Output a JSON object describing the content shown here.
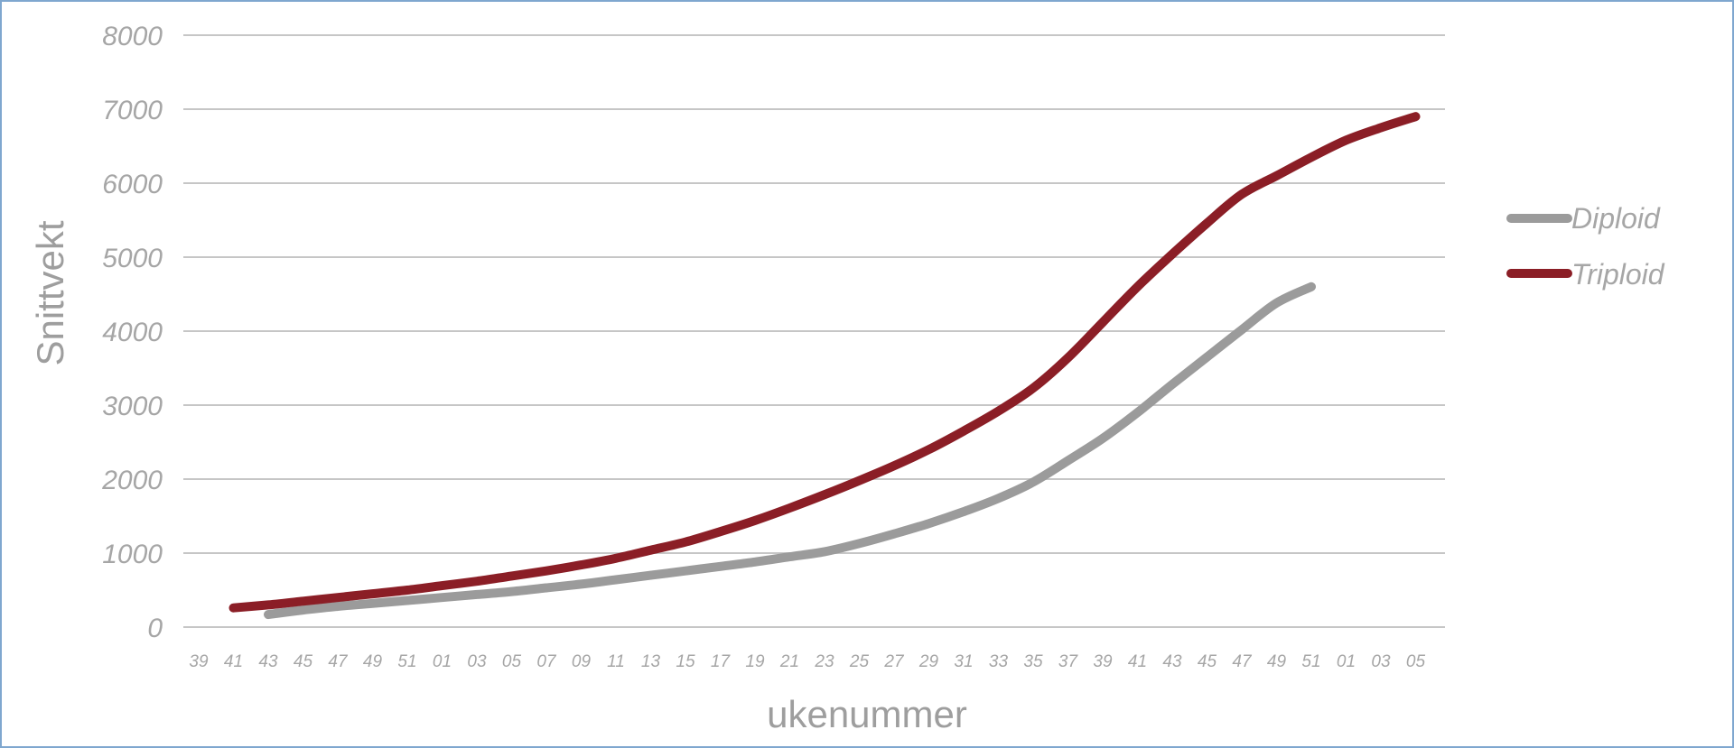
{
  "chart_data": {
    "type": "line",
    "title": "",
    "xlabel": "ukenummer",
    "ylabel": "Snittvekt",
    "ylim": [
      0,
      8000
    ],
    "yticks": [
      "0",
      "1000",
      "2000",
      "3000",
      "4000",
      "5000",
      "6000",
      "7000",
      "8000"
    ],
    "categories": [
      "39",
      "41",
      "43",
      "45",
      "47",
      "49",
      "51",
      "01",
      "03",
      "05",
      "07",
      "09",
      "11",
      "13",
      "15",
      "17",
      "19",
      "21",
      "23",
      "25",
      "27",
      "29",
      "31",
      "33",
      "35",
      "37",
      "39",
      "41",
      "43",
      "45",
      "47",
      "49",
      "51",
      "01",
      "03",
      "05"
    ],
    "grid": true,
    "legend_position": "right",
    "series": [
      {
        "name": "Diploid",
        "color": "#9b9b9b",
        "values": [
          null,
          null,
          170,
          230,
          280,
          320,
          360,
          400,
          440,
          480,
          530,
          580,
          640,
          700,
          760,
          820,
          880,
          950,
          1020,
          1130,
          1260,
          1400,
          1560,
          1740,
          1960,
          2250,
          2550,
          2900,
          3280,
          3650,
          4020,
          4380,
          4600,
          null,
          null,
          null
        ]
      },
      {
        "name": "Triploid",
        "color": "#8b1e26",
        "values": [
          null,
          260,
          300,
          350,
          400,
          450,
          500,
          560,
          620,
          690,
          760,
          840,
          930,
          1040,
          1150,
          1290,
          1440,
          1610,
          1790,
          1980,
          2180,
          2400,
          2650,
          2920,
          3230,
          3640,
          4120,
          4600,
          5040,
          5460,
          5850,
          6100,
          6350,
          6580,
          6750,
          6900
        ]
      }
    ]
  }
}
